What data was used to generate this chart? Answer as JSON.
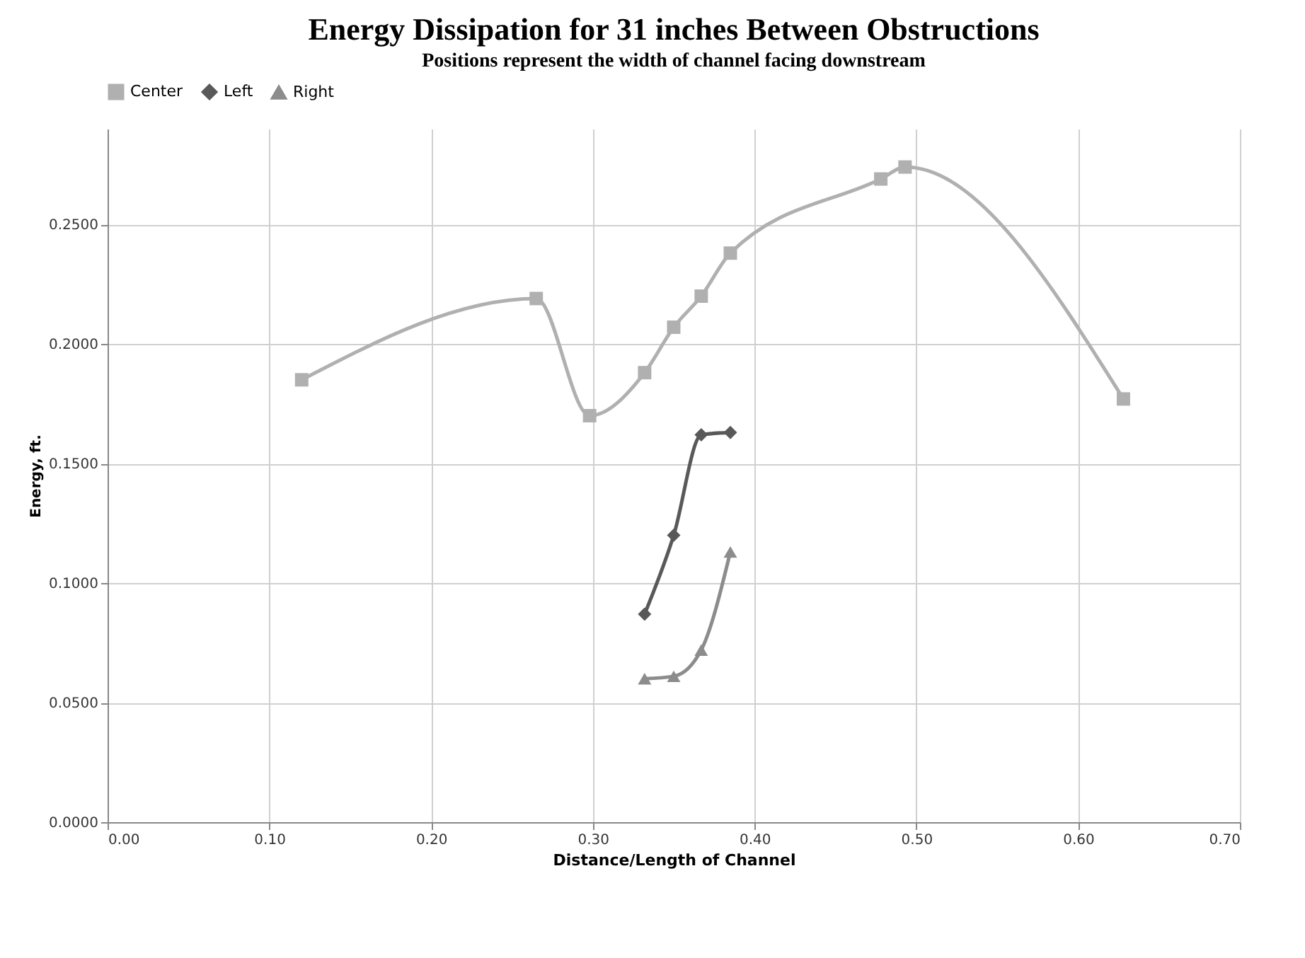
{
  "chart_data": {
    "type": "line",
    "title": "Energy Dissipation for 31 inches Between Obstructions",
    "subtitle": "Positions represent the width of channel facing downstream",
    "xlabel": "Distance/Length of Channel",
    "ylabel": "Energy, ft.",
    "series": [
      {
        "name": "Center",
        "color": "#b0b0b0",
        "marker": "square",
        "x": [
          0.12,
          0.265,
          0.298,
          0.332,
          0.35,
          0.367,
          0.385,
          0.478,
          0.493,
          0.628
        ],
        "values": [
          0.185,
          0.219,
          0.17,
          0.188,
          0.207,
          0.22,
          0.238,
          0.269,
          0.274,
          0.177
        ]
      },
      {
        "name": "Left",
        "color": "#595959",
        "marker": "diamond",
        "x": [
          0.332,
          0.35,
          0.367,
          0.385
        ],
        "values": [
          0.087,
          0.12,
          0.162,
          0.163
        ]
      },
      {
        "name": "Right",
        "color": "#8c8c8c",
        "marker": "triangle",
        "x": [
          0.332,
          0.35,
          0.367,
          0.385
        ],
        "values": [
          0.06,
          0.061,
          0.072,
          0.113
        ]
      }
    ],
    "xlim": [
      0,
      0.7
    ],
    "xticks": [
      {
        "value": 0,
        "label": "0.00"
      },
      {
        "value": 0.1,
        "label": "0.10"
      },
      {
        "value": 0.2,
        "label": "0.20"
      },
      {
        "value": 0.3,
        "label": "0.30"
      },
      {
        "value": 0.4,
        "label": "0.40"
      },
      {
        "value": 0.5,
        "label": "0.50"
      },
      {
        "value": 0.6,
        "label": "0.60"
      },
      {
        "value": 0.7,
        "label": "0.70"
      }
    ],
    "ylim": [
      0,
      0.29
    ],
    "yticks": [
      {
        "value": 0,
        "label": "0.0000"
      },
      {
        "value": 0.05,
        "label": "0.0500"
      },
      {
        "value": 0.1,
        "label": "0.1000"
      },
      {
        "value": 0.15,
        "label": "0.1500"
      },
      {
        "value": 0.2,
        "label": "0.2000"
      },
      {
        "value": 0.25,
        "label": "0.2500"
      }
    ],
    "grid": true,
    "legend": "top",
    "line_style": "solid"
  }
}
